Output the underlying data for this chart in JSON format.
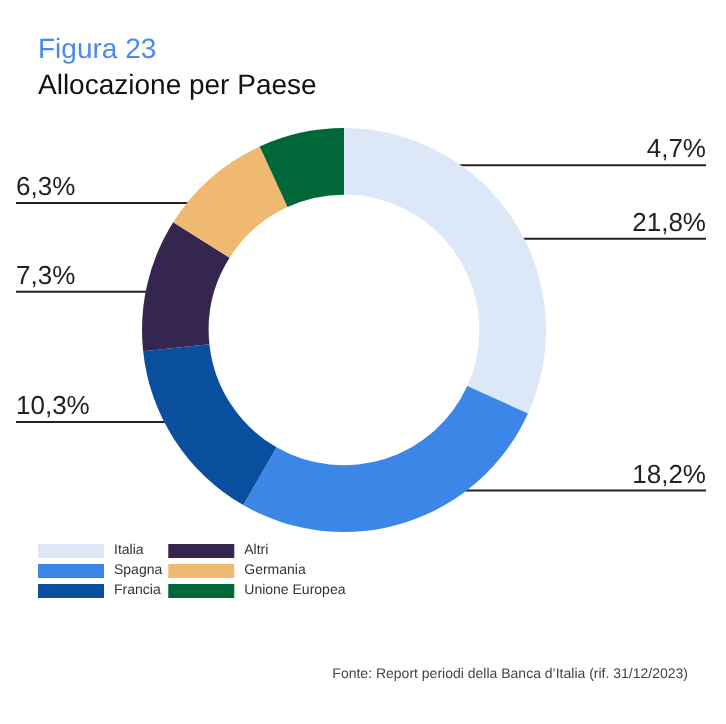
{
  "chart_data": {
    "type": "donut",
    "title": "Figura 23",
    "subtitle": "Allocazione per Paese",
    "categories": [
      "Italia",
      "Spagna",
      "Francia",
      "Altri",
      "Germania",
      "Unione Europea"
    ],
    "values": [
      21.8,
      18.2,
      10.3,
      7.3,
      6.3,
      4.7
    ],
    "value_labels": [
      "21,8%",
      "18,2%",
      "10,3%",
      "7,3%",
      "6,3%",
      "4,7%"
    ],
    "colors": [
      "#dce8f7",
      "#3c86e8",
      "#0a4f9e",
      "#35264f",
      "#f0b972",
      "#006838"
    ],
    "legend": "bottom",
    "annotations": [
      "Fonte: Report periodi della Banca d’Italia (rif. 31/12/2023)"
    ]
  }
}
